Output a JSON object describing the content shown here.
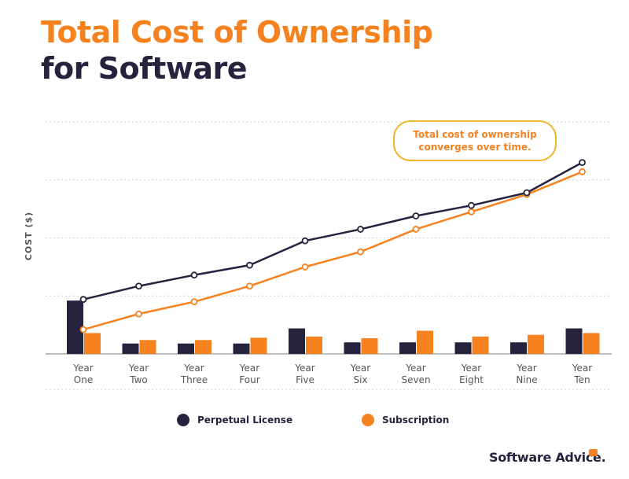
{
  "header": {
    "title_line1": "Total Cost of Ownership",
    "title_line2": "for Software"
  },
  "annotation": {
    "line1": "Total cost of ownership",
    "line2": "converges over time."
  },
  "brand": "Software Advice.",
  "colors": {
    "perpetual": "#26233f",
    "subscription": "#f5821f",
    "callout_border": "#f0b52a"
  },
  "chart_data": {
    "type": "bar+line",
    "ylabel": "COST ($)",
    "categories": [
      [
        "Year",
        "One"
      ],
      [
        "Year",
        "Two"
      ],
      [
        "Year",
        "Three"
      ],
      [
        "Year",
        "Four"
      ],
      [
        "Year",
        "Five"
      ],
      [
        "Year",
        "Six"
      ],
      [
        "Year",
        "Seven"
      ],
      [
        "Year",
        "Eight"
      ],
      [
        "Year",
        "Nine"
      ],
      [
        "Year",
        "Ten"
      ]
    ],
    "ylim": [
      0,
      4
    ],
    "grid": true,
    "legend_position": "bottom-center",
    "bar_series": [
      {
        "name": "Perpetual License",
        "values": [
          0.92,
          0.18,
          0.18,
          0.18,
          0.44,
          0.2,
          0.2,
          0.2,
          0.2,
          0.44
        ]
      },
      {
        "name": "Subscription",
        "values": [
          0.36,
          0.24,
          0.24,
          0.28,
          0.3,
          0.27,
          0.4,
          0.3,
          0.33,
          0.36
        ]
      }
    ],
    "line_series": [
      {
        "name": "Perpetual License",
        "values": [
          0.94,
          1.17,
          1.36,
          1.53,
          1.95,
          2.15,
          2.38,
          2.56,
          2.78,
          3.3
        ]
      },
      {
        "name": "Subscription",
        "values": [
          0.42,
          0.69,
          0.9,
          1.17,
          1.5,
          1.76,
          2.15,
          2.45,
          2.75,
          3.14
        ]
      }
    ]
  }
}
